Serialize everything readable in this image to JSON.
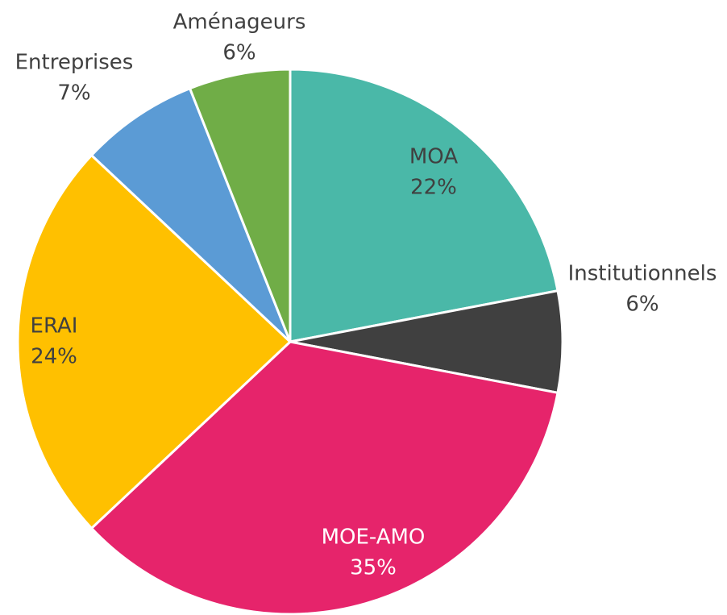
{
  "chart_data": {
    "type": "pie",
    "categories": [
      "MOA",
      "Institutionnels",
      "MOE-AMO",
      "ERAI",
      "Entreprises",
      "Aménageurs"
    ],
    "values": [
      22,
      6,
      35,
      24,
      7,
      6
    ],
    "value_labels": [
      "22%",
      "6%",
      "35%",
      "24%",
      "7%",
      "6%"
    ],
    "colors": [
      "#4ab8a8",
      "#404040",
      "#e6246b",
      "#ffc000",
      "#5b9bd5",
      "#70ad47"
    ]
  }
}
